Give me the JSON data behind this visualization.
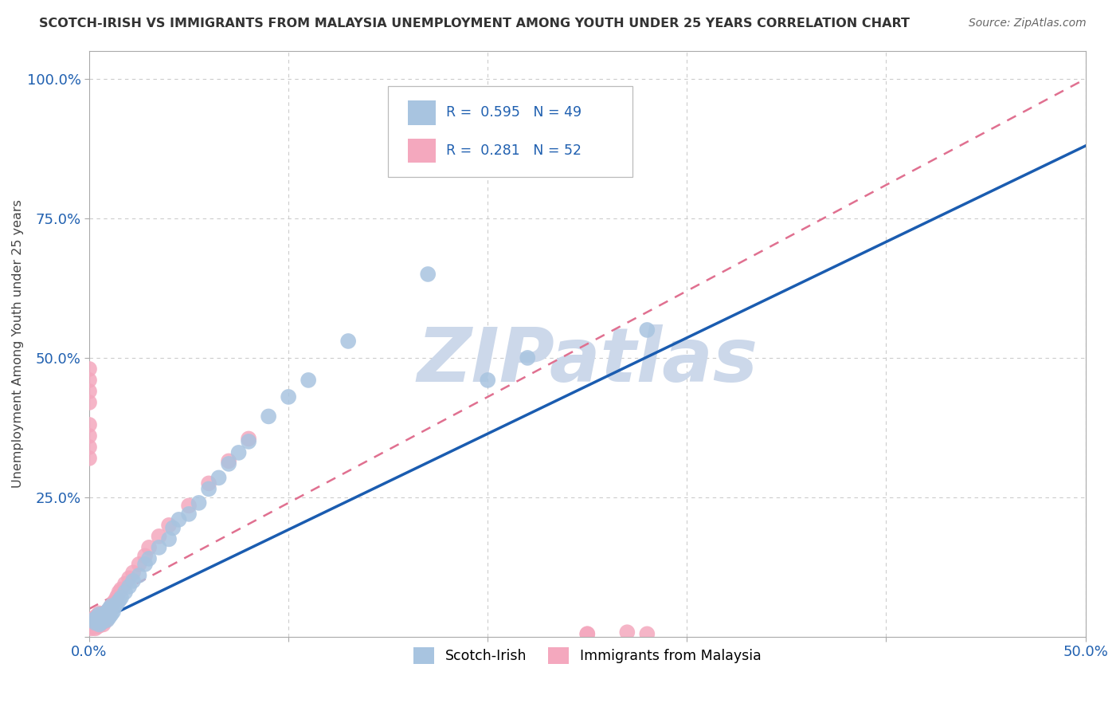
{
  "title": "SCOTCH-IRISH VS IMMIGRANTS FROM MALAYSIA UNEMPLOYMENT AMONG YOUTH UNDER 25 YEARS CORRELATION CHART",
  "source": "Source: ZipAtlas.com",
  "ylabel": "Unemployment Among Youth under 25 years",
  "xlim": [
    0.0,
    0.5
  ],
  "ylim": [
    0.0,
    1.05
  ],
  "xticks": [
    0.0,
    0.1,
    0.2,
    0.3,
    0.4,
    0.5
  ],
  "xticklabels": [
    "0.0%",
    "",
    "",
    "",
    "",
    "50.0%"
  ],
  "yticks": [
    0.0,
    0.25,
    0.5,
    0.75,
    1.0
  ],
  "yticklabels": [
    "",
    "25.0%",
    "50.0%",
    "75.0%",
    "100.0%"
  ],
  "scotch_irish_color": "#a8c4e0",
  "malaysia_color": "#f4a8be",
  "trend_blue_color": "#1a5cb0",
  "trend_pink_color": "#e07090",
  "watermark_color": "#ccd8ea",
  "blue_line_x0": 0.0,
  "blue_line_y0": 0.02,
  "blue_line_x1": 0.5,
  "blue_line_y1": 0.88,
  "pink_line_x0": 0.0,
  "pink_line_y0": 0.05,
  "pink_line_x1": 0.5,
  "pink_line_y1": 1.0,
  "scotch_irish_x": [
    0.002,
    0.003,
    0.004,
    0.004,
    0.005,
    0.005,
    0.005,
    0.006,
    0.006,
    0.007,
    0.007,
    0.008,
    0.008,
    0.009,
    0.009,
    0.01,
    0.01,
    0.011,
    0.011,
    0.012,
    0.013,
    0.014,
    0.015,
    0.016,
    0.018,
    0.02,
    0.022,
    0.025,
    0.028,
    0.03,
    0.035,
    0.04,
    0.042,
    0.045,
    0.05,
    0.055,
    0.06,
    0.065,
    0.07,
    0.075,
    0.08,
    0.09,
    0.1,
    0.11,
    0.13,
    0.17,
    0.2,
    0.22,
    0.28
  ],
  "scotch_irish_y": [
    0.03,
    0.025,
    0.028,
    0.035,
    0.022,
    0.03,
    0.04,
    0.025,
    0.035,
    0.028,
    0.038,
    0.032,
    0.042,
    0.03,
    0.045,
    0.035,
    0.05,
    0.04,
    0.055,
    0.045,
    0.055,
    0.06,
    0.065,
    0.07,
    0.08,
    0.09,
    0.1,
    0.11,
    0.13,
    0.14,
    0.16,
    0.175,
    0.195,
    0.21,
    0.22,
    0.24,
    0.265,
    0.285,
    0.31,
    0.33,
    0.35,
    0.395,
    0.43,
    0.46,
    0.53,
    0.65,
    0.46,
    0.5,
    0.55
  ],
  "malaysia_x": [
    0.001,
    0.002,
    0.002,
    0.003,
    0.003,
    0.003,
    0.004,
    0.004,
    0.004,
    0.005,
    0.005,
    0.005,
    0.006,
    0.006,
    0.007,
    0.007,
    0.008,
    0.008,
    0.009,
    0.009,
    0.01,
    0.01,
    0.011,
    0.012,
    0.013,
    0.014,
    0.015,
    0.016,
    0.018,
    0.02,
    0.022,
    0.025,
    0.028,
    0.03,
    0.035,
    0.04,
    0.05,
    0.06,
    0.07,
    0.08,
    0.0,
    0.0,
    0.0,
    0.0,
    0.25,
    0.28,
    0.0,
    0.0,
    0.25,
    0.27,
    0.0,
    0.0
  ],
  "malaysia_y": [
    0.015,
    0.018,
    0.022,
    0.015,
    0.025,
    0.035,
    0.018,
    0.028,
    0.038,
    0.02,
    0.03,
    0.042,
    0.025,
    0.038,
    0.022,
    0.035,
    0.028,
    0.04,
    0.032,
    0.045,
    0.038,
    0.048,
    0.055,
    0.06,
    0.065,
    0.072,
    0.08,
    0.085,
    0.095,
    0.105,
    0.115,
    0.13,
    0.145,
    0.16,
    0.18,
    0.2,
    0.235,
    0.275,
    0.315,
    0.355,
    0.32,
    0.34,
    0.36,
    0.38,
    0.005,
    0.005,
    0.42,
    0.44,
    0.005,
    0.008,
    0.46,
    0.48
  ]
}
